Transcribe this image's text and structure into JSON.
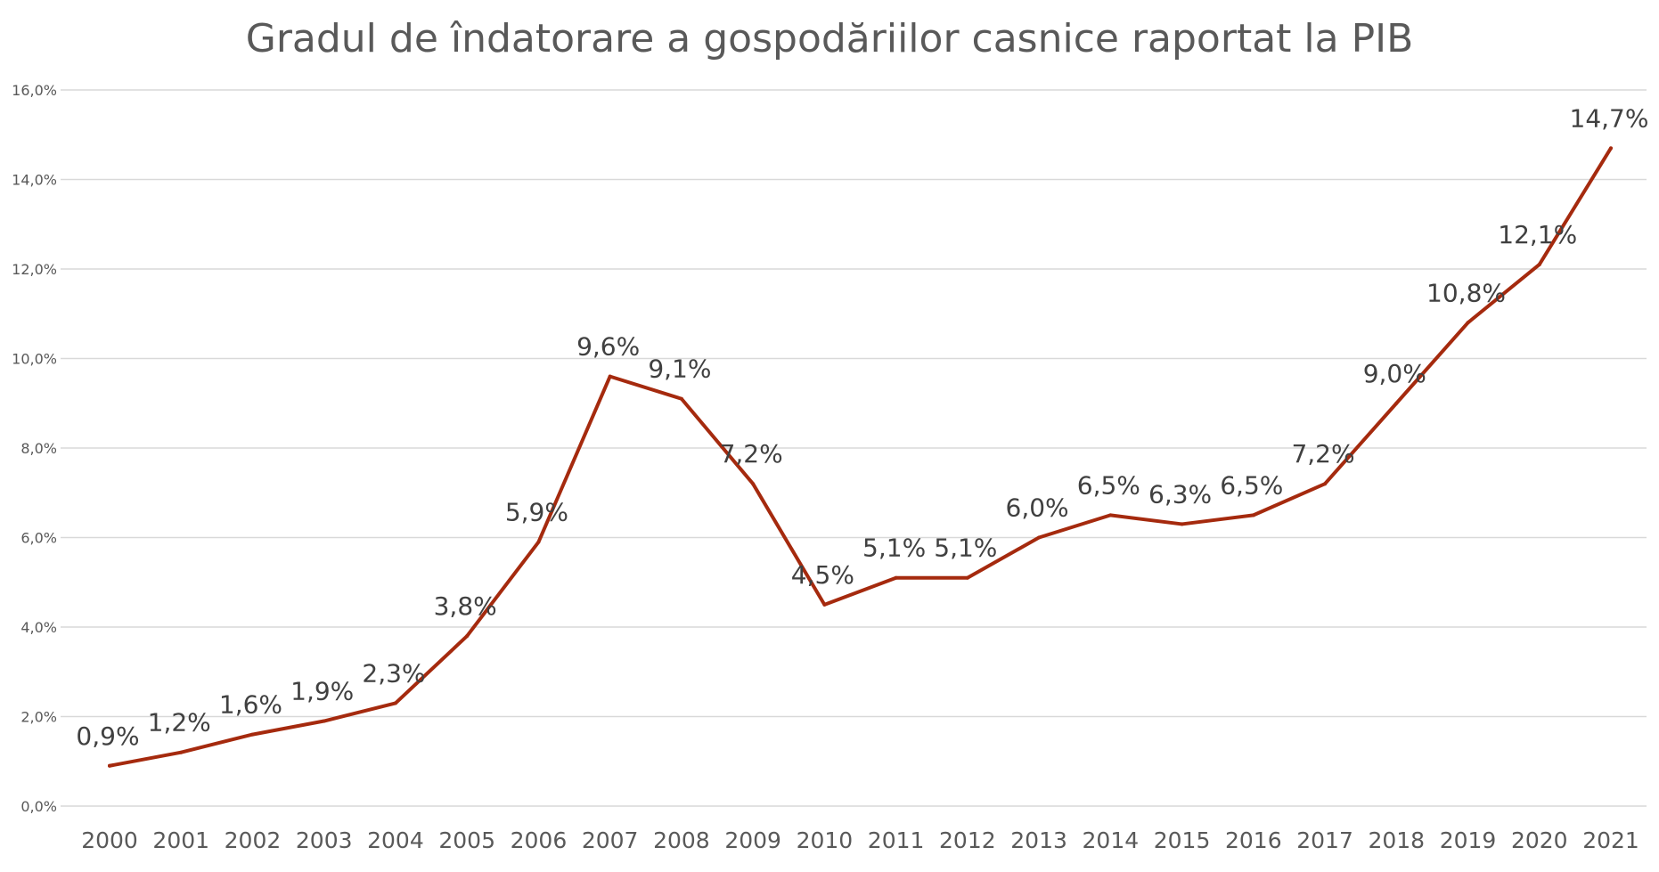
{
  "chart_data": {
    "type": "line",
    "title": "Gradul de îndatorare a gospodăriilor casnice raportat la PIB",
    "xlabel": "",
    "ylabel": "",
    "ylim": [
      0,
      16
    ],
    "grid": true,
    "legend": "none",
    "y_ticks": [
      "0,0%",
      "2,0%",
      "4,0%",
      "6,0%",
      "8,0%",
      "10,0%",
      "12,0%",
      "14,0%",
      "16,0%"
    ],
    "categories": [
      "2000",
      "2001",
      "2002",
      "2003",
      "2004",
      "2005",
      "2006",
      "2007",
      "2008",
      "2009",
      "2010",
      "2011",
      "2012",
      "2013",
      "2014",
      "2015",
      "2016",
      "2017",
      "2018",
      "2019",
      "2020",
      "2021"
    ],
    "series": [
      {
        "name": "Gradul de îndatorare",
        "color": "#A52A0E",
        "values": [
          0.9,
          1.2,
          1.6,
          1.9,
          2.3,
          3.8,
          5.9,
          9.6,
          9.1,
          7.2,
          4.5,
          5.1,
          5.1,
          6.0,
          6.5,
          6.3,
          6.5,
          7.2,
          9.0,
          10.8,
          12.1,
          14.7
        ],
        "labels": [
          "0,9%",
          "1,2%",
          "1,6%",
          "1,9%",
          "2,3%",
          "3,8%",
          "5,9%",
          "9,6%",
          "9,1%",
          "7,2%",
          "4,5%",
          "5,1%",
          "5,1%",
          "6,0%",
          "6,5%",
          "6,3%",
          "6,5%",
          "7,2%",
          "9,0%",
          "10,8%",
          "12,1%",
          "14,7%"
        ]
      }
    ]
  }
}
